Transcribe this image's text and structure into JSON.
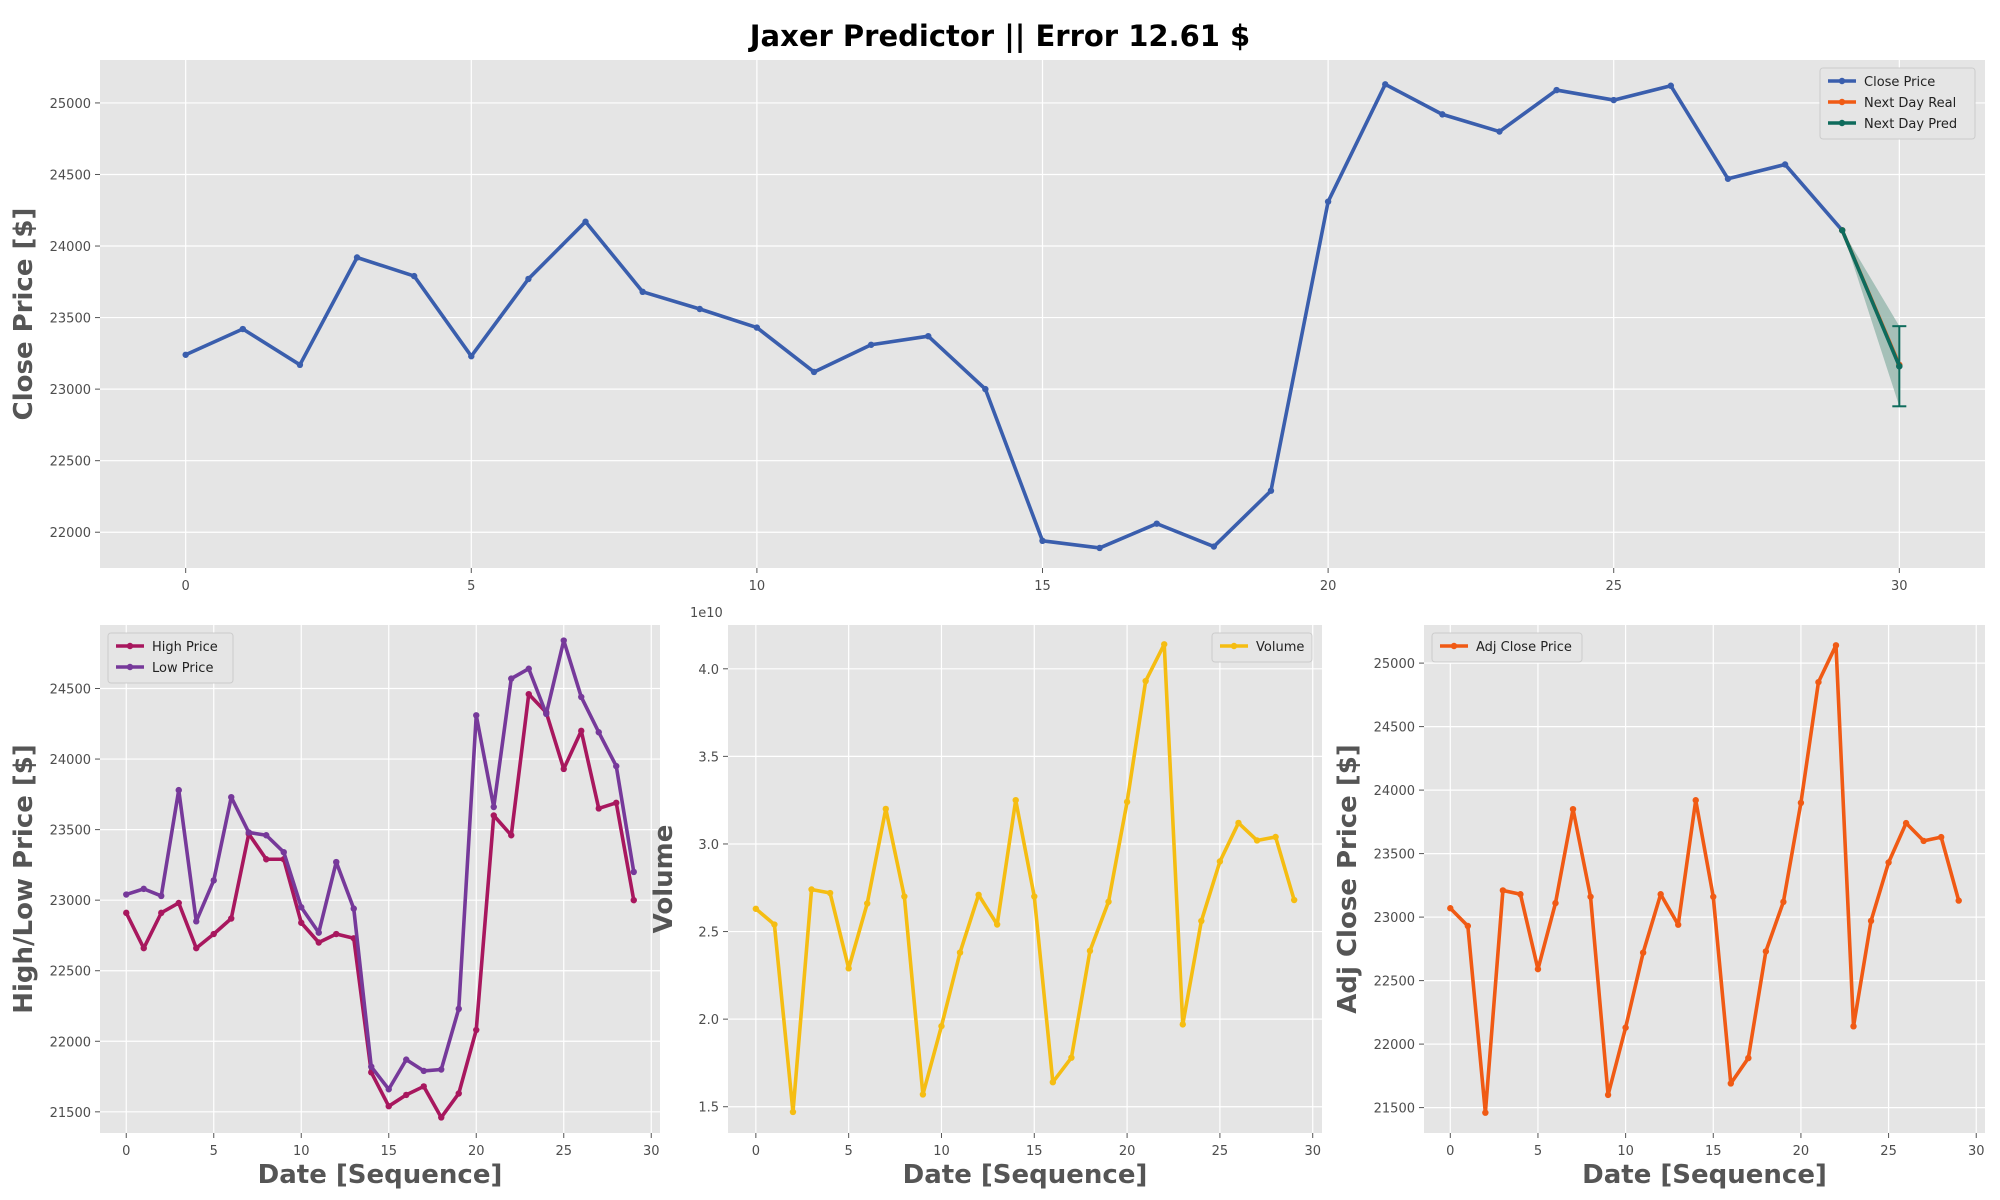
{
  "title": "Jaxer Predictor || Error 12.61 $",
  "colors": {
    "close": "#3a5ead",
    "next_real": "#f05a14",
    "next_pred": "#0e6b5c",
    "pred_band": "#8fb3a8",
    "high": "#a8175e",
    "low": "#76399a",
    "volume": "#f5bd12",
    "adj_close": "#f05a14",
    "axes_bg": "#e5e5e5",
    "grid": "#ffffff"
  },
  "chart_data": [
    {
      "type": "line",
      "id": "close",
      "ylabel": "Close Price [$]",
      "xlabel": "",
      "xlim": [
        -1.5,
        31.5
      ],
      "ylim": [
        21750,
        25300
      ],
      "xticks": [
        0,
        5,
        10,
        15,
        20,
        25,
        30
      ],
      "yticks": [
        22000,
        22500,
        23000,
        23500,
        24000,
        24500,
        25000
      ],
      "legend_position": "top-right",
      "series": [
        {
          "name": "Close Price",
          "x": [
            0,
            1,
            2,
            3,
            4,
            5,
            6,
            7,
            8,
            9,
            10,
            11,
            12,
            13,
            14,
            15,
            16,
            17,
            18,
            19,
            20,
            21,
            22,
            23,
            24,
            25,
            26,
            27,
            28,
            29
          ],
          "values": [
            23240,
            23420,
            23170,
            23920,
            23790,
            23230,
            23770,
            24170,
            23680,
            23560,
            23430,
            23120,
            23310,
            23370,
            23000,
            21940,
            21890,
            22060,
            21900,
            22290,
            24310,
            25130,
            24920,
            24800,
            25090,
            25020,
            25120,
            24470,
            24570,
            24110
          ]
        },
        {
          "name": "Next Day Real",
          "x": [
            29,
            30
          ],
          "values": [
            24110,
            23170
          ]
        },
        {
          "name": "Next Day Pred",
          "x": [
            29,
            30
          ],
          "values": [
            24110,
            23160
          ]
        }
      ],
      "prediction_band": {
        "x": [
          29,
          30
        ],
        "lower": [
          24110,
          22880
        ],
        "upper": [
          24110,
          23440
        ]
      },
      "error_bar": {
        "x": 30,
        "value": 23160,
        "lower": 22880,
        "upper": 23440
      }
    },
    {
      "type": "line",
      "id": "highlow",
      "ylabel": "High/Low Price [$]",
      "xlabel": "Date [Sequence]",
      "xlim": [
        -1.5,
        30.5
      ],
      "ylim": [
        21350,
        24950
      ],
      "xticks": [
        0,
        5,
        10,
        15,
        20,
        25,
        30
      ],
      "yticks": [
        21500,
        22000,
        22500,
        23000,
        23500,
        24000,
        24500
      ],
      "legend_position": "top-left",
      "series": [
        {
          "name": "High Price",
          "x": [
            0,
            1,
            2,
            3,
            4,
            5,
            6,
            7,
            8,
            9,
            10,
            11,
            12,
            13,
            14,
            15,
            16,
            17,
            18,
            19,
            20,
            21,
            22,
            23,
            24,
            25,
            26,
            27,
            28,
            29
          ],
          "values": [
            22910,
            22660,
            22910,
            22980,
            22660,
            22760,
            22870,
            23470,
            23290,
            23290,
            22840,
            22700,
            22760,
            22730,
            21780,
            21540,
            21620,
            21680,
            21460,
            21630,
            22080,
            23600,
            23460,
            24460,
            24330,
            23930,
            24200,
            23650,
            23690,
            23000
          ]
        },
        {
          "name": "Low Price",
          "x": [
            0,
            1,
            2,
            3,
            4,
            5,
            6,
            7,
            8,
            9,
            10,
            11,
            12,
            13,
            14,
            15,
            16,
            17,
            18,
            19,
            20,
            21,
            22,
            23,
            24,
            25,
            26,
            27,
            28,
            29
          ],
          "values": [
            23040,
            23080,
            23030,
            23780,
            22850,
            23140,
            23730,
            23480,
            23460,
            23340,
            22950,
            22770,
            23270,
            22940,
            21820,
            21660,
            21870,
            21790,
            21800,
            22230,
            24310,
            23660,
            24570,
            24640,
            24320,
            24840,
            24440,
            24190,
            23950,
            23200
          ]
        }
      ]
    },
    {
      "type": "line",
      "id": "volume",
      "ylabel": "Volume",
      "xlabel": "Date [Sequence]",
      "offset_label": "1e10",
      "xlim": [
        -1.5,
        30.5
      ],
      "ylim": [
        1.35,
        4.25
      ],
      "xticks": [
        0,
        5,
        10,
        15,
        20,
        25,
        30
      ],
      "yticks": [
        1.5,
        2.0,
        2.5,
        3.0,
        3.5,
        4.0
      ],
      "ytick_labels": [
        "1.5",
        "2.0",
        "2.5",
        "3.0",
        "3.5",
        "4.0"
      ],
      "legend_position": "top-right",
      "series": [
        {
          "name": "Volume",
          "x": [
            0,
            1,
            2,
            3,
            4,
            5,
            6,
            7,
            8,
            9,
            10,
            11,
            12,
            13,
            14,
            15,
            16,
            17,
            18,
            19,
            20,
            21,
            22,
            23,
            24,
            25,
            26,
            27,
            28,
            29
          ],
          "values": [
            2.63,
            2.54,
            1.47,
            2.74,
            2.72,
            2.29,
            2.66,
            3.2,
            2.7,
            1.57,
            1.96,
            2.38,
            2.71,
            2.54,
            3.25,
            2.7,
            1.64,
            1.78,
            2.39,
            2.67,
            3.24,
            3.93,
            4.14,
            1.97,
            2.56,
            2.9,
            3.12,
            3.02,
            3.04,
            2.68
          ]
        }
      ]
    },
    {
      "type": "line",
      "id": "adjclose",
      "ylabel": "Adj Close Price [$]",
      "xlabel": "Date [Sequence]",
      "xlim": [
        -1.5,
        30.5
      ],
      "ylim": [
        21300,
        25300
      ],
      "xticks": [
        0,
        5,
        10,
        15,
        20,
        25,
        30
      ],
      "yticks": [
        21500,
        22000,
        22500,
        23000,
        23500,
        24000,
        24500,
        25000
      ],
      "legend_position": "top-left",
      "series": [
        {
          "name": "Adj Close Price",
          "x": [
            0,
            1,
            2,
            3,
            4,
            5,
            6,
            7,
            8,
            9,
            10,
            11,
            12,
            13,
            14,
            15,
            16,
            17,
            18,
            19,
            20,
            21,
            22,
            23,
            24,
            25,
            26,
            27,
            28,
            29
          ],
          "values": [
            23070,
            22930,
            21460,
            23210,
            23180,
            22590,
            23110,
            23850,
            23160,
            21600,
            22130,
            22720,
            23180,
            22940,
            23920,
            23160,
            21690,
            21890,
            22730,
            23120,
            23900,
            24850,
            25140,
            22140,
            22970,
            23430,
            23740,
            23600,
            23630,
            23130
          ]
        }
      ]
    }
  ]
}
